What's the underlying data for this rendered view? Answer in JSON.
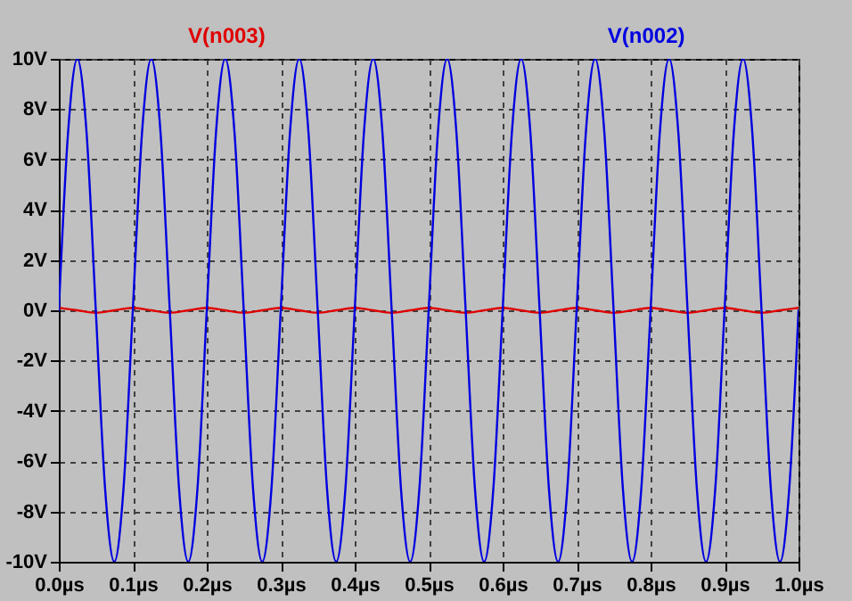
{
  "chart_data": {
    "type": "line",
    "xlim": [
      0,
      1
    ],
    "ylim": [
      -10,
      10
    ],
    "xticks": [
      {
        "value": 0,
        "label": "0.0µs"
      },
      {
        "value": 0.1,
        "label": "0.1µs"
      },
      {
        "value": 0.2,
        "label": "0.2µs"
      },
      {
        "value": 0.3,
        "label": "0.3µs"
      },
      {
        "value": 0.4,
        "label": "0.4µs"
      },
      {
        "value": 0.5,
        "label": "0.5µs"
      },
      {
        "value": 0.6,
        "label": "0.6µs"
      },
      {
        "value": 0.7,
        "label": "0.7µs"
      },
      {
        "value": 0.8,
        "label": "0.8µs"
      },
      {
        "value": 0.9,
        "label": "0.9µs"
      },
      {
        "value": 1,
        "label": "1.0µs"
      }
    ],
    "yticks": [
      {
        "value": -10,
        "label": "-10V"
      },
      {
        "value": -8,
        "label": "-8V"
      },
      {
        "value": -6,
        "label": "-6V"
      },
      {
        "value": -4,
        "label": "-4V"
      },
      {
        "value": -2,
        "label": "-2V"
      },
      {
        "value": 0,
        "label": "0V"
      },
      {
        "value": 2,
        "label": "2V"
      },
      {
        "value": 4,
        "label": "4V"
      },
      {
        "value": 6,
        "label": "6V"
      },
      {
        "value": 8,
        "label": "8V"
      },
      {
        "value": 10,
        "label": "10V"
      }
    ],
    "grid": true,
    "legend": "top",
    "line_style": "solid",
    "marker": "none",
    "series": [
      {
        "name": "V(n003)",
        "color": "#e00000",
        "x": [
          0,
          0.025,
          0.05,
          0.075,
          0.1,
          0.125,
          0.15,
          0.175,
          0.2,
          0.225,
          0.25,
          0.275,
          0.3,
          0.325,
          0.35,
          0.375,
          0.4,
          0.425,
          0.45,
          0.475,
          0.5,
          0.525,
          0.55,
          0.575,
          0.6,
          0.625,
          0.65,
          0.675,
          0.7,
          0.725,
          0.75,
          0.775,
          0.8,
          0.825,
          0.85,
          0.875,
          0.9,
          0.925,
          0.95,
          0.975,
          1
        ],
        "values": [
          0.1,
          0,
          -0.1,
          0,
          0.1,
          0,
          -0.1,
          0,
          0.1,
          0,
          -0.1,
          0,
          0.1,
          0,
          -0.1,
          0,
          0.1,
          0,
          -0.1,
          0,
          0.1,
          0,
          -0.1,
          0,
          0.1,
          0,
          -0.1,
          0,
          0.1,
          0,
          -0.1,
          0,
          0.1,
          0,
          -0.1,
          0,
          0.1,
          0,
          -0.1,
          0,
          0.1
        ]
      },
      {
        "name": "V(n002)",
        "color": "#0000e0",
        "x": [
          0,
          0.0125,
          0.025,
          0.0375,
          0.05,
          0.0625,
          0.075,
          0.0875,
          0.1,
          0.1125,
          0.125,
          0.1375,
          0.15,
          0.1625,
          0.175,
          0.1875,
          0.2,
          0.2125,
          0.225,
          0.2375,
          0.25,
          0.2625,
          0.275,
          0.2875,
          0.3,
          0.3125,
          0.325,
          0.3375,
          0.35,
          0.3625,
          0.375,
          0.3875,
          0.4,
          0.4125,
          0.425,
          0.4375,
          0.45,
          0.4625,
          0.475,
          0.4875,
          0.5,
          0.5125,
          0.525,
          0.5375,
          0.55,
          0.5625,
          0.575,
          0.5875,
          0.6,
          0.6125,
          0.625,
          0.6375,
          0.65,
          0.6625,
          0.675,
          0.6875,
          0.7,
          0.7125,
          0.725,
          0.7375,
          0.75,
          0.7625,
          0.775,
          0.7875,
          0.8,
          0.8125,
          0.825,
          0.8375,
          0.85,
          0.8625,
          0.875,
          0.8875,
          0.9,
          0.9125,
          0.925,
          0.9375,
          0.95,
          0.9625,
          0.975,
          0.9875,
          1
        ],
        "values": [
          0,
          7.07,
          10,
          7.07,
          0,
          -7.07,
          -10,
          -7.07,
          0,
          7.07,
          10,
          7.07,
          0,
          -7.07,
          -10,
          -7.07,
          0,
          7.07,
          10,
          7.07,
          0,
          -7.07,
          -10,
          -7.07,
          0,
          7.07,
          10,
          7.07,
          0,
          -7.07,
          -10,
          -7.07,
          0,
          7.07,
          10,
          7.07,
          0,
          -7.07,
          -10,
          -7.07,
          0,
          7.07,
          10,
          7.07,
          0,
          -7.07,
          -10,
          -7.07,
          0,
          7.07,
          10,
          7.07,
          0,
          -7.07,
          -10,
          -7.07,
          0,
          7.07,
          10,
          7.07,
          0,
          -7.07,
          -10,
          -7.07,
          0,
          7.07,
          10,
          7.07,
          0,
          -7.07,
          -10,
          -7.07,
          0,
          7.07,
          10,
          7.07,
          0,
          -7.07,
          -10,
          -7.07,
          0
        ]
      }
    ]
  }
}
